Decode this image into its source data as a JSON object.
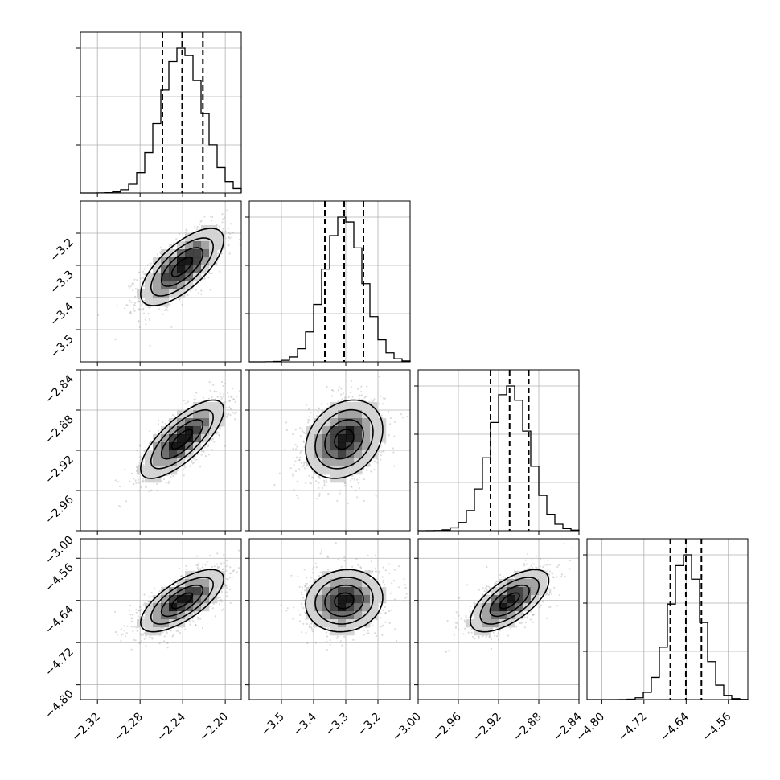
{
  "chart_data": {
    "type": "corner",
    "n_params": 4,
    "parameters": [
      {
        "mean": -2.2405,
        "sd": 0.0195,
        "q16": -2.259,
        "q50": -2.2405,
        "q84": -2.221,
        "range": [
          -2.336,
          -2.185
        ],
        "ticks": [
          -2.32,
          -2.28,
          -2.24,
          -2.2
        ],
        "tick_labels": [
          "−2.32",
          "−2.28",
          "−2.24",
          "−2.20"
        ]
      },
      {
        "mean": -3.305,
        "sd": 0.06,
        "q16": -3.365,
        "q50": -3.305,
        "q84": -3.245,
        "range": [
          -3.6,
          -3.1
        ],
        "ticks": [
          -3.5,
          -3.4,
          -3.3,
          -3.2
        ],
        "tick_labels": [
          "−3.5",
          "−3.4",
          "−3.3",
          "−3.2"
        ]
      },
      {
        "mean": -2.909,
        "sd": 0.0195,
        "q16": -2.928,
        "q50": -2.909,
        "q84": -2.89,
        "range": [
          -3.0,
          -2.84
        ],
        "ticks": [
          -3.0,
          -2.96,
          -2.92,
          -2.88,
          -2.84
        ],
        "tick_labels": [
          "−3.00",
          "−2.96",
          "−2.92",
          "−2.88",
          "−2.84"
        ]
      },
      {
        "mean": -4.6405,
        "sd": 0.0295,
        "q16": -4.67,
        "q50": -4.6405,
        "q84": -4.611,
        "range": [
          -4.828,
          -4.523
        ],
        "ticks": [
          -4.8,
          -4.72,
          -4.64,
          -4.56
        ],
        "tick_labels": [
          "−4.80",
          "−4.72",
          "−4.64",
          "−4.56"
        ]
      }
    ],
    "correlations": {
      "1-0": 0.7,
      "2-0": 0.75,
      "2-1": 0.25,
      "3-0": 0.7,
      "3-1": 0.1,
      "3-2": 0.65
    },
    "histogram_bins": 20,
    "contour_levels_sigma": [
      0.5,
      1.0,
      1.5,
      2.0
    ],
    "grid": true,
    "colors": {
      "line": "#000000",
      "grid": "#b0b0b0",
      "points": "#999999",
      "density_ramp": [
        "#ffffff",
        "#d0d0d0",
        "#9a9a9a",
        "#606060",
        "#303030",
        "#000000"
      ]
    }
  }
}
